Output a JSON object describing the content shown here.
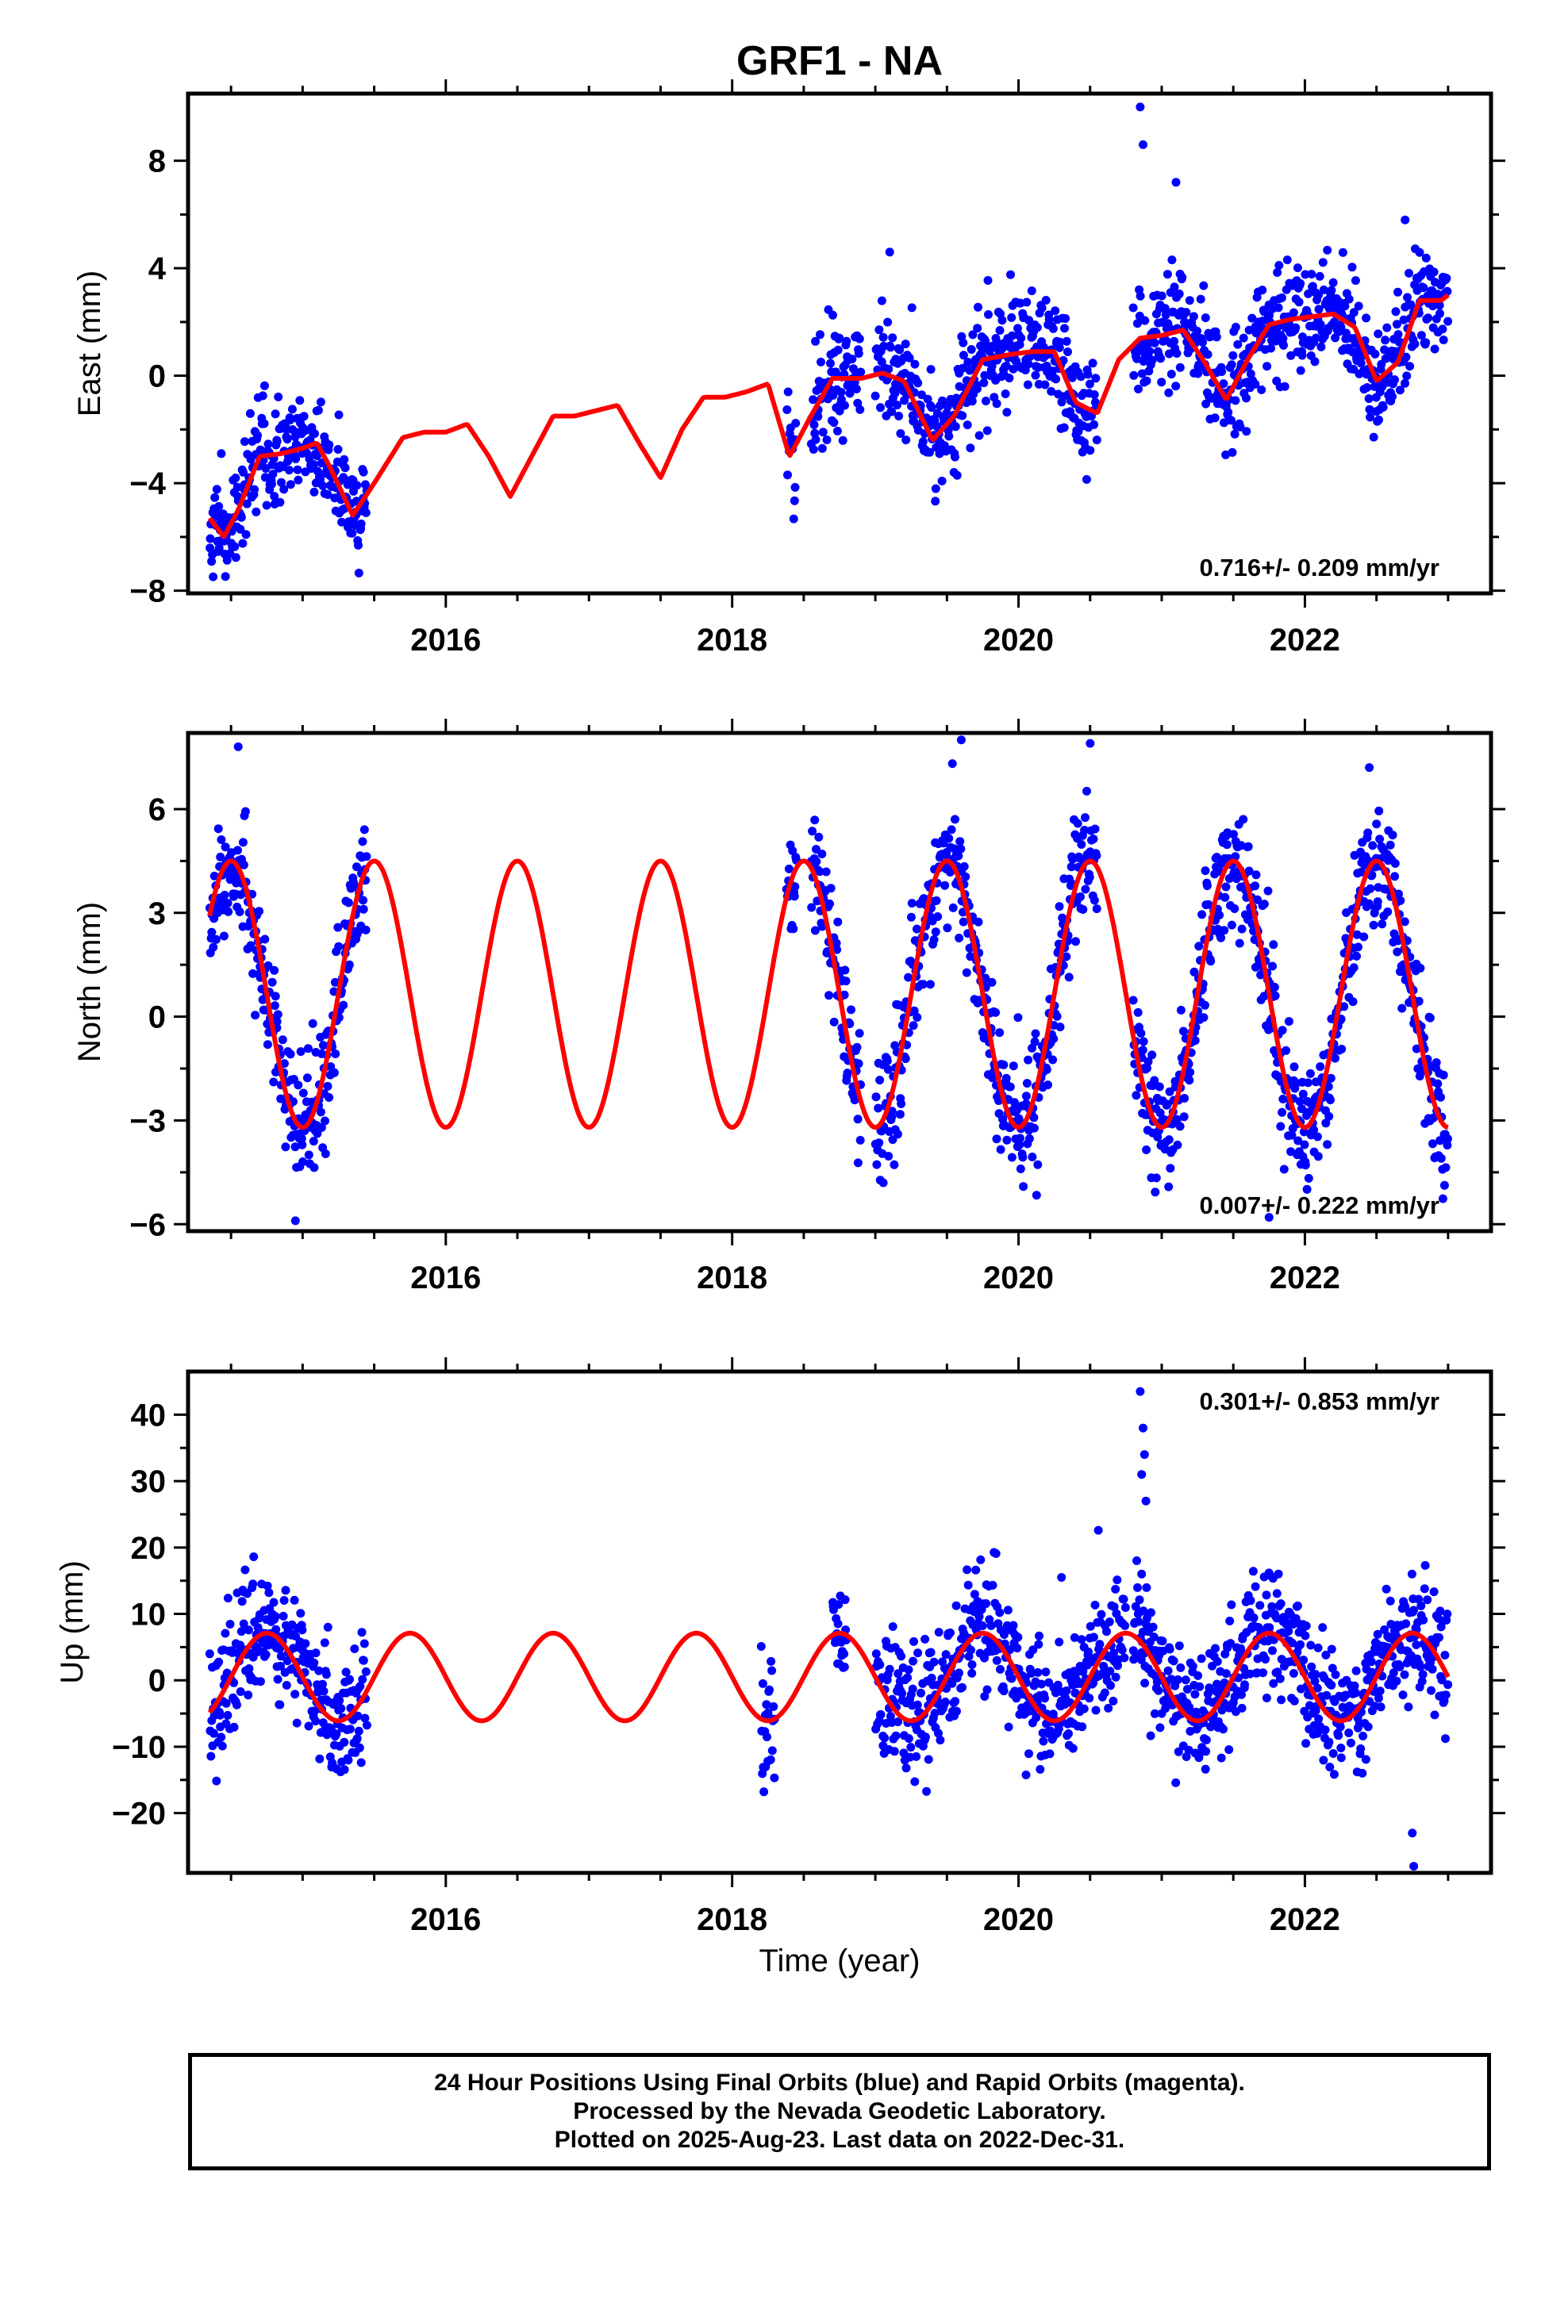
{
  "title": "GRF1 - NA",
  "xlabel": "Time (year)",
  "footer": [
    "24 Hour Positions Using Final Orbits (blue) and Rapid Orbits (magenta).",
    "Processed by the Nevada Geodetic Laboratory.",
    "Plotted on 2025-Aug-23. Last data on 2022-Dec-31."
  ],
  "colors": {
    "final_orbit_points": "#0000ff",
    "model_fit": "#ff0000",
    "frame": "#000000"
  },
  "chart_data": [
    {
      "type": "scatter",
      "ylabel": "East (mm)",
      "rate_label": "0.716+/- 0.209 mm/yr",
      "rate_position": "bottom-right",
      "x_range": [
        2014.2,
        2023.3
      ],
      "ylim": [
        -8.1,
        10.5
      ],
      "x_ticks": [
        2016,
        2018,
        2020,
        2022
      ],
      "x_tick_labels": [
        "2016",
        "2018",
        "2020",
        "2022"
      ],
      "y_ticks": [
        -8,
        -4,
        0,
        4,
        8
      ],
      "y_tick_labels": [
        "−8",
        "−4",
        "0",
        "4",
        "8"
      ],
      "grid": false,
      "series": [
        {
          "kind": "points",
          "segments": [
            [
              2014.35,
              2015.45
            ],
            [
              2018.38,
              2018.45
            ],
            [
              2018.55,
              2018.9
            ],
            [
              2019.0,
              2020.55
            ],
            [
              2020.8,
              2023.0
            ]
          ],
          "trend": {
            "x": [
              2014.35,
              2015.45,
              2018.4,
              2019.5,
              2020.5,
              2021.0,
              2022.0,
              2023.0
            ],
            "y": [
              -5.5,
              -4.0,
              -2.3,
              -1.0,
              0.0,
              1.7,
              2.2,
              2.5
            ]
          },
          "noise_sd_mm": 1.0,
          "outliers": [
            {
              "x": 2020.85,
              "y": 10.0
            },
            {
              "x": 2020.87,
              "y": 8.6
            },
            {
              "x": 2021.1,
              "y": 7.2
            },
            {
              "x": 2019.1,
              "y": 4.6
            },
            {
              "x": 2022.7,
              "y": 5.8
            }
          ]
        },
        {
          "kind": "line",
          "x": [
            2014.35,
            2014.45,
            2014.55,
            2014.7,
            2014.85,
            2015.0,
            2015.1,
            2015.2,
            2015.35,
            2015.5,
            2015.7,
            2015.85,
            2016.0,
            2016.15,
            2016.3,
            2016.45,
            2016.6,
            2016.75,
            2016.9,
            2017.05,
            2017.2,
            2017.35,
            2017.5,
            2017.65,
            2017.8,
            2017.95,
            2018.1,
            2018.25,
            2018.4,
            2018.55,
            2018.7,
            2018.9,
            2019.05,
            2019.2,
            2019.4,
            2019.55,
            2019.75,
            2019.95,
            2020.1,
            2020.25,
            2020.4,
            2020.55,
            2020.7,
            2020.85,
            2021.0,
            2021.15,
            2021.3,
            2021.45,
            2021.6,
            2021.75,
            2021.9,
            2022.05,
            2022.2,
            2022.35,
            2022.5,
            2022.65,
            2022.8,
            2022.95,
            2023.0
          ],
          "y": [
            -5.3,
            -6.0,
            -5.0,
            -3.0,
            -2.9,
            -2.7,
            -2.5,
            -3.5,
            -5.2,
            -4.0,
            -2.3,
            -2.1,
            -2.1,
            -1.8,
            -3.0,
            -4.5,
            -3.0,
            -1.5,
            -1.5,
            -1.3,
            -1.1,
            -2.5,
            -3.8,
            -2.0,
            -0.8,
            -0.8,
            -0.6,
            -0.3,
            -3.0,
            -1.5,
            -0.1,
            -0.1,
            0.1,
            -0.2,
            -2.4,
            -1.5,
            0.6,
            0.8,
            0.9,
            0.9,
            -1.0,
            -1.4,
            0.6,
            1.4,
            1.5,
            1.7,
            0.5,
            -0.9,
            0.6,
            1.9,
            2.1,
            2.2,
            2.3,
            1.8,
            -0.2,
            0.5,
            2.8,
            2.8,
            3.0
          ]
        }
      ]
    },
    {
      "type": "scatter",
      "ylabel": "North (mm)",
      "rate_label": "0.007+/- 0.222 mm/yr",
      "rate_position": "bottom-right",
      "x_range": [
        2014.2,
        2023.3
      ],
      "ylim": [
        -6.2,
        8.2
      ],
      "x_ticks": [
        2016,
        2018,
        2020,
        2022
      ],
      "x_tick_labels": [
        "2016",
        "2018",
        "2020",
        "2022"
      ],
      "y_ticks": [
        -6,
        -3,
        0,
        3,
        6
      ],
      "y_tick_labels": [
        "−6",
        "−3",
        "0",
        "3",
        "6"
      ],
      "grid": false,
      "series": [
        {
          "kind": "points",
          "segments": [
            [
              2014.35,
              2015.45
            ],
            [
              2018.38,
              2018.45
            ],
            [
              2018.55,
              2018.9
            ],
            [
              2019.0,
              2020.55
            ],
            [
              2020.8,
              2023.0
            ]
          ],
          "trend": {
            "x": [
              2014.35,
              2023.0
            ],
            "y": [
              0.6,
              0.6
            ]
          },
          "noise_sd_mm": 0.9,
          "outliers": [
            {
              "x": 2014.55,
              "y": 7.8
            },
            {
              "x": 2019.6,
              "y": 8.0
            },
            {
              "x": 2020.5,
              "y": 7.9
            },
            {
              "x": 2022.45,
              "y": 7.2
            },
            {
              "x": 2014.95,
              "y": -5.9
            },
            {
              "x": 2021.75,
              "y": -5.8
            }
          ]
        },
        {
          "kind": "line",
          "amplitude_mm": 3.85,
          "offset_mm": 0.65,
          "annual_phase_peak_year_fraction": 0.5,
          "x_range": [
            2014.35,
            2023.0
          ]
        }
      ]
    },
    {
      "type": "scatter",
      "ylabel": "Up (mm)",
      "rate_label": "0.301+/- 0.853 mm/yr",
      "rate_position": "top-right",
      "x_range": [
        2014.2,
        2023.3
      ],
      "ylim": [
        -29,
        46.5
      ],
      "x_ticks": [
        2016,
        2018,
        2020,
        2022
      ],
      "x_tick_labels": [
        "2016",
        "2018",
        "2020",
        "2022"
      ],
      "y_ticks": [
        -20,
        -10,
        0,
        10,
        20,
        30,
        40
      ],
      "y_tick_labels": [
        "−20",
        "−10",
        "0",
        "10",
        "20",
        "30",
        "40"
      ],
      "grid": false,
      "series": [
        {
          "kind": "points",
          "segments": [
            [
              2014.35,
              2015.45
            ],
            [
              2018.2,
              2018.3
            ],
            [
              2018.7,
              2018.8
            ],
            [
              2019.0,
              2020.75
            ],
            [
              2020.8,
              2023.0
            ]
          ],
          "trend": {
            "x": [
              2014.35,
              2023.0
            ],
            "y": [
              1.0,
              1.0
            ]
          },
          "noise_sd_mm": 4.5,
          "outliers": [
            {
              "x": 2020.85,
              "y": 43.5
            },
            {
              "x": 2020.87,
              "y": 38.0
            },
            {
              "x": 2020.88,
              "y": 34.0
            },
            {
              "x": 2020.86,
              "y": 31.0
            },
            {
              "x": 2020.89,
              "y": 27.0
            },
            {
              "x": 2020.86,
              "y": 16.0
            },
            {
              "x": 2022.75,
              "y": -23.0
            },
            {
              "x": 2022.76,
              "y": -28.0
            },
            {
              "x": 2020.3,
              "y": 15.5
            }
          ]
        },
        {
          "kind": "line",
          "amplitude_mm": 6.6,
          "offset_mm": 0.5,
          "annual_phase_peak_year_fraction": 0.75,
          "x_range": [
            2014.35,
            2023.0
          ]
        }
      ]
    }
  ]
}
